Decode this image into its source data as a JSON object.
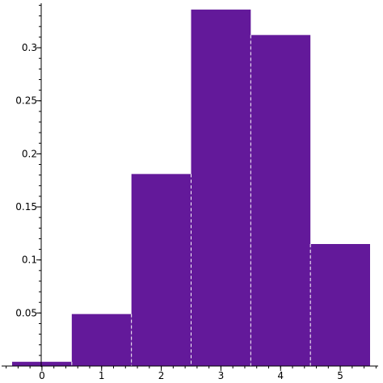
{
  "chart_data": {
    "type": "bar",
    "title": "",
    "xlabel": "",
    "ylabel": "",
    "categories": [
      "0",
      "1",
      "2",
      "3",
      "4",
      "5"
    ],
    "values": [
      0.004,
      0.049,
      0.181,
      0.336,
      0.312,
      0.115
    ],
    "xlim": [
      -0.5,
      5.5
    ],
    "ylim": [
      0,
      0.345
    ],
    "x_ticks": [
      0,
      1,
      2,
      3,
      4,
      5
    ],
    "x_tick_labels": [
      "0",
      "1",
      "2",
      "3",
      "4",
      "5"
    ],
    "y_ticks": [
      0.05,
      0.1,
      0.15,
      0.2,
      0.25,
      0.3
    ],
    "y_tick_labels": [
      "0.05",
      "0.1",
      "0.15",
      "0.2",
      "0.25",
      "0.3"
    ],
    "bar_color": "#63199a",
    "bar_divider_color": "#ffffff",
    "axis_color": "#000000",
    "grid": false,
    "legend": "none"
  }
}
